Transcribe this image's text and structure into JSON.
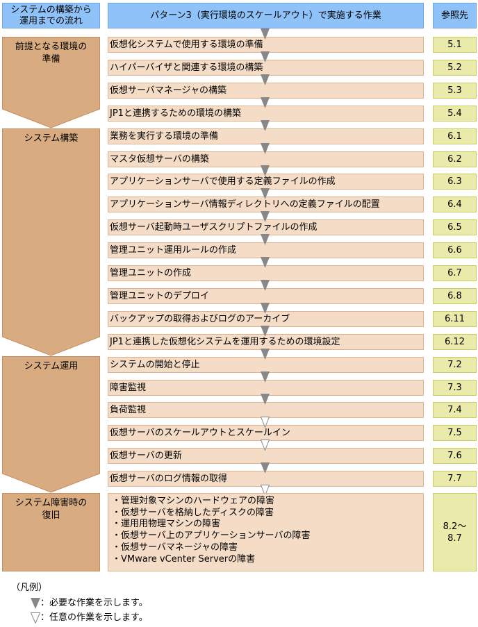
{
  "header": {
    "flow": "システムの構築から運用までの流れ",
    "flow_line1": "システムの構築から",
    "flow_line2": "運用までの流れ",
    "tasks": "パターン3（実行環境のスケールアウト）で実施する作業",
    "reference": "参照先"
  },
  "groups": [
    {
      "label_line1": "前提となる環境の",
      "label_line2": "準備"
    },
    {
      "label_line1": "システム構築",
      "label_line2": ""
    },
    {
      "label_line1": "システム運用",
      "label_line2": ""
    },
    {
      "label_line1": "システム障害時の",
      "label_line2": "復旧"
    }
  ],
  "rows": [
    {
      "task": "仮想化システムで使用する環境の準備",
      "ref": "5.1",
      "arrow_before": "required"
    },
    {
      "task": "ハイパーバイザと関連する環境の構築",
      "ref": "5.2",
      "arrow_before": "required"
    },
    {
      "task": "仮想サーバマネージャの構築",
      "ref": "5.3",
      "arrow_before": "required"
    },
    {
      "task": "JP1と連携するための環境の構築",
      "ref": "5.4",
      "arrow_before": "required"
    },
    {
      "task": "業務を実行する環境の準備",
      "ref": "6.1",
      "arrow_before": "required"
    },
    {
      "task": "マスタ仮想サーバの構築",
      "ref": "6.2",
      "arrow_before": "required"
    },
    {
      "task": "アプリケーションサーバで使用する定義ファイルの作成",
      "ref": "6.3",
      "arrow_before": "required"
    },
    {
      "task": "アプリケーションサーバ情報ディレクトリへの定義ファイルの配置",
      "ref": "6.4",
      "arrow_before": "required"
    },
    {
      "task": "仮想サーバ起動時ユーザスクリプトファイルの作成",
      "ref": "6.5",
      "arrow_before": "required"
    },
    {
      "task": "管理ユニット運用ルールの作成",
      "ref": "6.6",
      "arrow_before": "required"
    },
    {
      "task": "管理ユニットの作成",
      "ref": "6.7",
      "arrow_before": "required"
    },
    {
      "task": "管理ユニットのデプロイ",
      "ref": "6.8",
      "arrow_before": "required"
    },
    {
      "task": "バックアップの取得およびログのアーカイブ",
      "ref": "6.11",
      "arrow_before": "required"
    },
    {
      "task": "JP1と連携した仮想化システムを運用するための環境設定",
      "ref": "6.12",
      "arrow_before": "required"
    },
    {
      "task": "システムの開始と停止",
      "ref": "7.2",
      "arrow_before": "required"
    },
    {
      "task": "障害監視",
      "ref": "7.3",
      "arrow_before": "required"
    },
    {
      "task": "負荷監視",
      "ref": "7.4",
      "arrow_before": "required"
    },
    {
      "task": "仮想サーバのスケールアウトとスケールイン",
      "ref": "7.5",
      "arrow_before": "optional"
    },
    {
      "task": "仮想サーバの更新",
      "ref": "7.6",
      "arrow_before": "optional"
    },
    {
      "task": "仮想サーバのログ情報の取得",
      "ref": "7.7",
      "arrow_before": "required"
    }
  ],
  "recovery": {
    "arrow_before": "optional",
    "items": [
      "・管理対象マシンのハードウェアの障害",
      "・仮想サーバを格納したディスクの障害",
      "・運用用物理マシンの障害",
      "・仮想サーバ上のアプリケーションサーバの障害",
      "・仮想サーバマネージャの障害",
      "・VMware vCenter Serverの障害"
    ],
    "ref_line1": "8.2～",
    "ref_line2": "8.7"
  },
  "legend": {
    "title": "（凡例）",
    "required": "：必要な作業を示します。",
    "optional": "：任意の作業を示します。"
  },
  "colors": {
    "header": "#8ec2f8",
    "task": "#f4dcc6",
    "ref": "#eaeaaa",
    "group": "#d9ab80",
    "arrow": "#888888"
  }
}
